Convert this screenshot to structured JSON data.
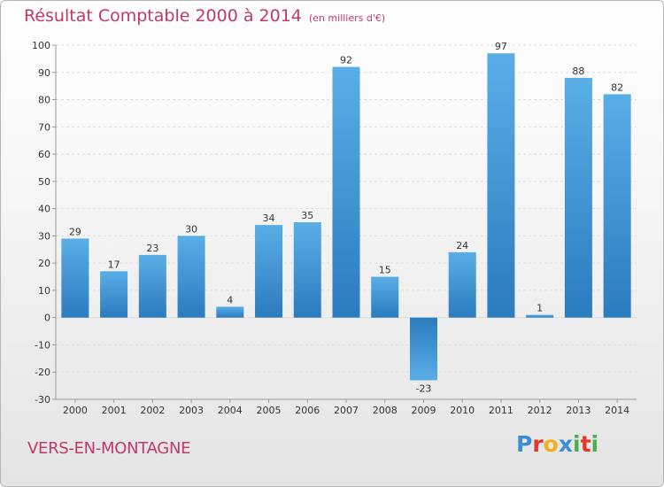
{
  "header": {
    "title": "Résultat Comptable 2000 à 2014",
    "subtitle": "(en milliers d'€)"
  },
  "footer": {
    "commune": "VERS-EN-MONTAGNE",
    "logo_letters": [
      {
        "ch": "P",
        "color": "#3b8ed6"
      },
      {
        "ch": "r",
        "color": "#e2372b"
      },
      {
        "ch": "o",
        "color": "#f2b01e"
      },
      {
        "ch": "x",
        "color": "#3b8ed6"
      },
      {
        "ch": "i",
        "color": "#4caf50"
      },
      {
        "ch": "t",
        "color": "#e2372b"
      },
      {
        "ch": "i",
        "color": "#4caf50"
      }
    ]
  },
  "chart_data": {
    "type": "bar",
    "title": "Résultat Comptable 2000 à 2014",
    "subtitle": "(en milliers d'€)",
    "xlabel": "",
    "ylabel": "",
    "categories": [
      "2000",
      "2001",
      "2002",
      "2003",
      "2004",
      "2005",
      "2006",
      "2007",
      "2008",
      "2009",
      "2010",
      "2011",
      "2012",
      "2013",
      "2014"
    ],
    "values": [
      29,
      17,
      23,
      30,
      4,
      34,
      35,
      92,
      15,
      -23,
      24,
      97,
      1,
      88,
      82
    ],
    "ylim": [
      -30,
      100
    ],
    "yticks": [
      -30,
      -20,
      -10,
      0,
      10,
      20,
      30,
      40,
      50,
      60,
      70,
      80,
      90,
      100
    ],
    "grid": true,
    "colors": {
      "bar_light": "#5aaee6",
      "bar_dark": "#2b7bbf",
      "grid": "#dcdcdc",
      "axis": "#999999"
    }
  }
}
